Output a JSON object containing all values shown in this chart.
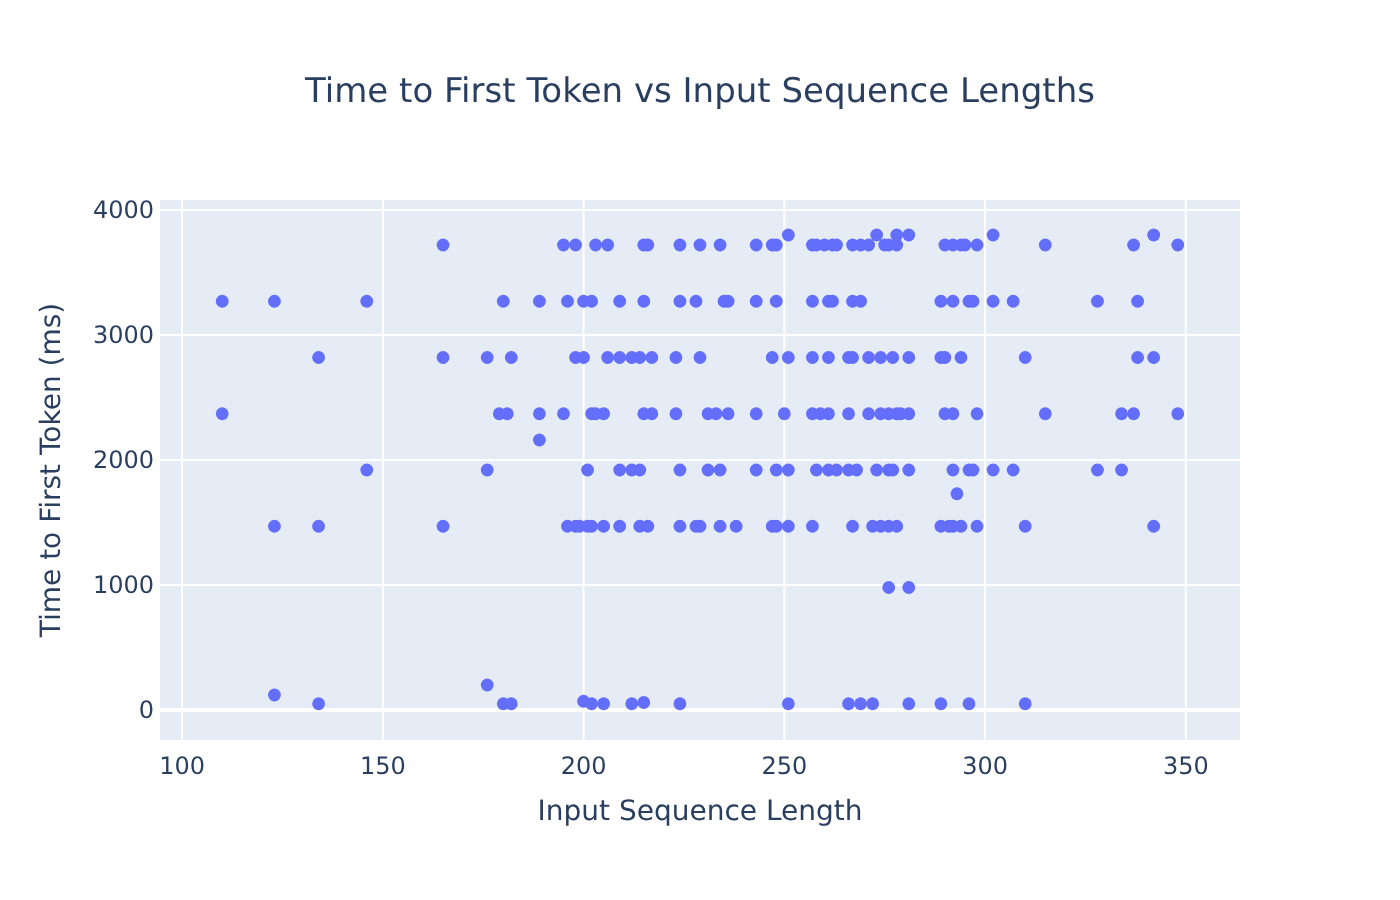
{
  "chart_data": {
    "type": "scatter",
    "title": "Time to First Token vs Input Sequence Lengths",
    "xlabel": "Input Sequence Length",
    "ylabel": "Time to First Token (ms)",
    "xlim": [
      94.5,
      363.5
    ],
    "xticks": [
      100,
      150,
      200,
      250,
      300,
      350
    ],
    "ylim": [
      -240,
      4080
    ],
    "yticks": [
      0,
      1000,
      2000,
      3000,
      4000
    ],
    "grid": true,
    "marker": "circle",
    "series": [
      {
        "color": "#636efa",
        "x": [
          251,
          273,
          278,
          281,
          302,
          342,
          165,
          195,
          198,
          203,
          206,
          215,
          216,
          224,
          229,
          234,
          243,
          247,
          248,
          257,
          258,
          260,
          262,
          263,
          267,
          269,
          271,
          275,
          276,
          278,
          290,
          292,
          294,
          295,
          298,
          315,
          337,
          348,
          110,
          123,
          146,
          180,
          189,
          196,
          200,
          202,
          209,
          215,
          224,
          228,
          235,
          236,
          243,
          248,
          257,
          261,
          262,
          267,
          269,
          289,
          292,
          296,
          297,
          302,
          307,
          328,
          338,
          134,
          165,
          176,
          182,
          198,
          200,
          206,
          209,
          212,
          214,
          217,
          223,
          229,
          247,
          251,
          257,
          261,
          266,
          267,
          271,
          274,
          277,
          281,
          289,
          290,
          294,
          310,
          338,
          342,
          110,
          179,
          181,
          189,
          195,
          202,
          203,
          205,
          215,
          217,
          223,
          231,
          233,
          236,
          243,
          250,
          257,
          259,
          261,
          266,
          271,
          274,
          276,
          278,
          279,
          281,
          290,
          292,
          298,
          315,
          334,
          337,
          348,
          189,
          146,
          176,
          201,
          209,
          212,
          214,
          224,
          231,
          234,
          243,
          248,
          251,
          258,
          261,
          263,
          266,
          268,
          273,
          276,
          277,
          281,
          292,
          296,
          297,
          302,
          307,
          328,
          334,
          293,
          123,
          134,
          165,
          196,
          198,
          199,
          201,
          202,
          205,
          209,
          214,
          216,
          224,
          228,
          229,
          234,
          238,
          247,
          248,
          251,
          257,
          267,
          272,
          274,
          276,
          278,
          289,
          291,
          292,
          294,
          298,
          310,
          342,
          276,
          281,
          123,
          176,
          134,
          180,
          182,
          200,
          202,
          205,
          212,
          215,
          224,
          251,
          266,
          269,
          272,
          281,
          289,
          296,
          310
        ],
        "values": [
          3800,
          3800,
          3800,
          3800,
          3800,
          3800,
          3720,
          3720,
          3720,
          3720,
          3720,
          3720,
          3720,
          3720,
          3720,
          3720,
          3720,
          3720,
          3720,
          3720,
          3720,
          3720,
          3720,
          3720,
          3720,
          3720,
          3720,
          3720,
          3720,
          3720,
          3720,
          3720,
          3720,
          3720,
          3720,
          3720,
          3720,
          3720,
          3270,
          3270,
          3270,
          3270,
          3270,
          3270,
          3270,
          3270,
          3270,
          3270,
          3270,
          3270,
          3270,
          3270,
          3270,
          3270,
          3270,
          3270,
          3270,
          3270,
          3270,
          3270,
          3270,
          3270,
          3270,
          3270,
          3270,
          3270,
          3270,
          2820,
          2820,
          2820,
          2820,
          2820,
          2820,
          2820,
          2820,
          2820,
          2820,
          2820,
          2820,
          2820,
          2820,
          2820,
          2820,
          2820,
          2820,
          2820,
          2820,
          2820,
          2820,
          2820,
          2820,
          2820,
          2820,
          2820,
          2820,
          2820,
          2370,
          2370,
          2370,
          2370,
          2370,
          2370,
          2370,
          2370,
          2370,
          2370,
          2370,
          2370,
          2370,
          2370,
          2370,
          2370,
          2370,
          2370,
          2370,
          2370,
          2370,
          2370,
          2370,
          2370,
          2370,
          2370,
          2370,
          2370,
          2370,
          2370,
          2370,
          2370,
          2370,
          2160,
          1920,
          1920,
          1920,
          1920,
          1920,
          1920,
          1920,
          1920,
          1920,
          1920,
          1920,
          1920,
          1920,
          1920,
          1920,
          1920,
          1920,
          1920,
          1920,
          1920,
          1920,
          1920,
          1920,
          1920,
          1920,
          1920,
          1920,
          1920,
          1730,
          1470,
          1470,
          1470,
          1470,
          1470,
          1470,
          1470,
          1470,
          1470,
          1470,
          1470,
          1470,
          1470,
          1470,
          1470,
          1470,
          1470,
          1470,
          1470,
          1470,
          1470,
          1470,
          1470,
          1470,
          1470,
          1470,
          1470,
          1470,
          1470,
          1470,
          1470,
          1470,
          1470,
          980,
          980,
          120,
          200,
          50,
          50,
          50,
          70,
          50,
          50,
          50,
          60,
          50,
          50,
          50,
          50,
          50,
          50,
          50,
          50,
          50
        ]
      }
    ]
  }
}
